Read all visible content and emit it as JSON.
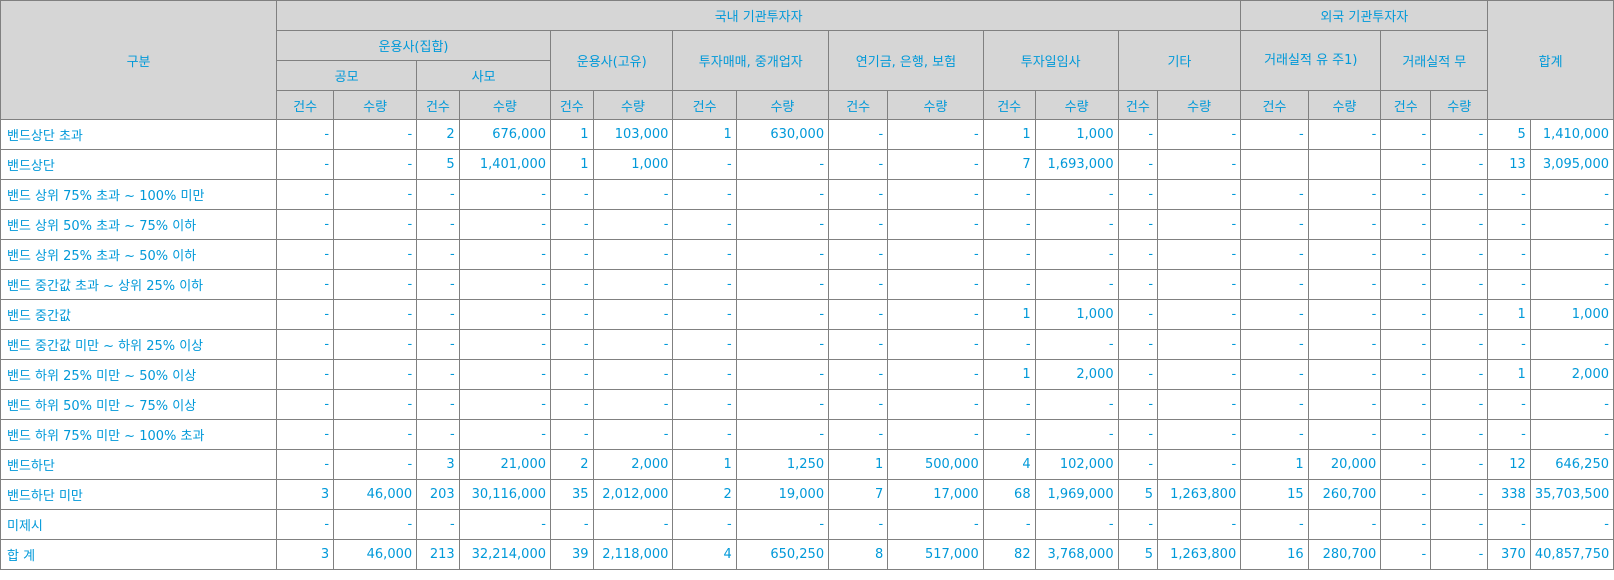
{
  "header": {
    "category": "구분",
    "domestic": "국내 기관투자자",
    "foreign": "외국 기관투자자",
    "total": "합계",
    "asset_mgmt_collective": "운용사(집합)",
    "public": "공모",
    "private": "사모",
    "asset_mgmt_proprietary": "운용사(고유)",
    "brokers": "투자매매, 중개업자",
    "pension_bank_insurance": "연기금, 은행, 보험",
    "investment_advisory": "투자일임사",
    "others": "기타",
    "with_track_record": "거래실적 유 주1)",
    "without_track_record": "거래실적 무",
    "count": "건수",
    "quantity": "수량"
  },
  "rows": [
    {
      "label": "밴드상단 초과",
      "cells": [
        "-",
        "-",
        "2",
        "676,000",
        "1",
        "103,000",
        "1",
        "630,000",
        "-",
        "-",
        "1",
        "1,000",
        "-",
        "-",
        "-",
        "-",
        "-",
        "-",
        "5",
        "1,410,000"
      ]
    },
    {
      "label": "밴드상단",
      "cells": [
        "-",
        "-",
        "5",
        "1,401,000",
        "1",
        "1,000",
        "-",
        "-",
        "-",
        "-",
        "7",
        "1,693,000",
        "-",
        "-",
        "",
        "",
        "-",
        "-",
        "13",
        "3,095,000"
      ]
    },
    {
      "label": "밴드 상위 75% 초과 ~ 100% 미만",
      "cells": [
        "-",
        "-",
        "-",
        "-",
        "-",
        "-",
        "-",
        "-",
        "-",
        "-",
        "-",
        "-",
        "-",
        "-",
        "-",
        "-",
        "-",
        "-",
        "-",
        "-"
      ]
    },
    {
      "label": "밴드 상위 50% 초과 ~ 75% 이하",
      "cells": [
        "-",
        "-",
        "-",
        "-",
        "-",
        "-",
        "-",
        "-",
        "-",
        "-",
        "-",
        "-",
        "-",
        "-",
        "-",
        "-",
        "-",
        "-",
        "-",
        "-"
      ]
    },
    {
      "label": "밴드 상위 25% 초과 ~ 50% 이하",
      "cells": [
        "-",
        "-",
        "-",
        "-",
        "-",
        "-",
        "-",
        "-",
        "-",
        "-",
        "-",
        "-",
        "-",
        "-",
        "-",
        "-",
        "-",
        "-",
        "-",
        "-"
      ]
    },
    {
      "label": "밴드 중간값 초과 ~ 상위 25% 이하",
      "cells": [
        "-",
        "-",
        "-",
        "-",
        "-",
        "-",
        "-",
        "-",
        "-",
        "-",
        "-",
        "-",
        "-",
        "-",
        "-",
        "-",
        "-",
        "-",
        "-",
        "-"
      ]
    },
    {
      "label": "밴드 중간값",
      "cells": [
        "-",
        "-",
        "-",
        "-",
        "-",
        "-",
        "-",
        "-",
        "-",
        "-",
        "1",
        "1,000",
        "-",
        "-",
        "-",
        "-",
        "-",
        "-",
        "1",
        "1,000"
      ]
    },
    {
      "label": "밴드 중간값 미만 ~ 하위 25% 이상",
      "cells": [
        "-",
        "-",
        "-",
        "-",
        "-",
        "-",
        "-",
        "-",
        "-",
        "-",
        "-",
        "-",
        "-",
        "-",
        "-",
        "-",
        "-",
        "-",
        "-",
        "-"
      ]
    },
    {
      "label": "밴드 하위 25% 미만 ~ 50% 이상",
      "cells": [
        "-",
        "-",
        "-",
        "-",
        "-",
        "-",
        "-",
        "-",
        "-",
        "-",
        "1",
        "2,000",
        "-",
        "-",
        "-",
        "-",
        "-",
        "-",
        "1",
        "2,000"
      ]
    },
    {
      "label": "밴드 하위 50% 미만 ~ 75% 이상",
      "cells": [
        "-",
        "-",
        "-",
        "-",
        "-",
        "-",
        "-",
        "-",
        "-",
        "-",
        "-",
        "-",
        "-",
        "-",
        "-",
        "-",
        "-",
        "-",
        "-",
        "-"
      ]
    },
    {
      "label": "밴드 하위 75% 미만 ~ 100% 초과",
      "cells": [
        "-",
        "-",
        "-",
        "-",
        "-",
        "-",
        "-",
        "-",
        "-",
        "-",
        "-",
        "-",
        "-",
        "-",
        "-",
        "-",
        "-",
        "-",
        "-",
        "-"
      ]
    },
    {
      "label": "밴드하단",
      "cells": [
        "-",
        "-",
        "3",
        "21,000",
        "2",
        "2,000",
        "1",
        "1,250",
        "1",
        "500,000",
        "4",
        "102,000",
        "-",
        "-",
        "1",
        "20,000",
        "-",
        "-",
        "12",
        "646,250"
      ]
    },
    {
      "label": "밴드하단 미만",
      "cells": [
        "3",
        "46,000",
        "203",
        "30,116,000",
        "35",
        "2,012,000",
        "2",
        "19,000",
        "7",
        "17,000",
        "68",
        "1,969,000",
        "5",
        "1,263,800",
        "15",
        "260,700",
        "-",
        "-",
        "338",
        "35,703,500"
      ]
    },
    {
      "label": "미제시",
      "cells": [
        "-",
        "-",
        "-",
        "-",
        "-",
        "-",
        "-",
        "-",
        "-",
        "-",
        "-",
        "-",
        "-",
        "-",
        "-",
        "-",
        "-",
        "-",
        "-",
        "-"
      ]
    },
    {
      "label": "합 계",
      "cells": [
        "3",
        "46,000",
        "213",
        "32,214,000",
        "39",
        "2,118,000",
        "4",
        "650,250",
        "8",
        "517,000",
        "82",
        "3,768,000",
        "5",
        "1,263,800",
        "16",
        "280,700",
        "-",
        "-",
        "370",
        "40,857,750"
      ]
    }
  ]
}
